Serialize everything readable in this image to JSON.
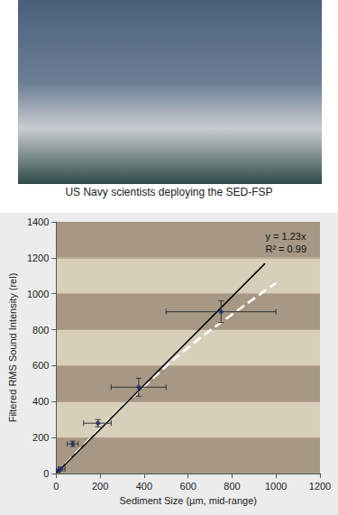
{
  "caption": "US Navy scientists deploying the SED-FSP",
  "chart_data": {
    "type": "scatter",
    "x_label": "Sediment Size (µm, mid-range)",
    "y_label": "Filtered RMS Sound Intensity (rel)",
    "annotations": [
      "y = 1.23x",
      "R² = 0.99"
    ],
    "x": [
      8,
      20,
      75,
      190,
      375,
      750
    ],
    "values": [
      15,
      25,
      165,
      280,
      480,
      900
    ],
    "x_error": [
      [
        0,
        16
      ],
      [
        10,
        40
      ],
      [
        50,
        100
      ],
      [
        125,
        250
      ],
      [
        250,
        500
      ],
      [
        500,
        1000
      ]
    ],
    "y_error": [
      [
        8,
        22
      ],
      [
        15,
        35
      ],
      [
        150,
        180
      ],
      [
        260,
        300
      ],
      [
        430,
        530
      ],
      [
        840,
        960
      ]
    ],
    "color": "#1f2a6b",
    "marker": "circle",
    "fit": {
      "x": [
        0,
        950
      ],
      "values": [
        0,
        1168.5
      ],
      "color": "#000000",
      "line_style": "solid"
    },
    "curve": {
      "x": [
        0,
        200,
        400,
        600,
        800,
        1000
      ],
      "values": [
        0,
        250,
        485,
        700,
        885,
        1060
      ],
      "color": "#ffffff",
      "line_style": "dashed"
    },
    "xlim": [
      0,
      1200
    ],
    "xticks": [
      0,
      200,
      400,
      600,
      800,
      1000,
      1200
    ],
    "ylim": [
      0,
      1400
    ],
    "yticks": [
      0,
      200,
      400,
      600,
      800,
      1000,
      1200,
      1400
    ],
    "grid": true
  }
}
